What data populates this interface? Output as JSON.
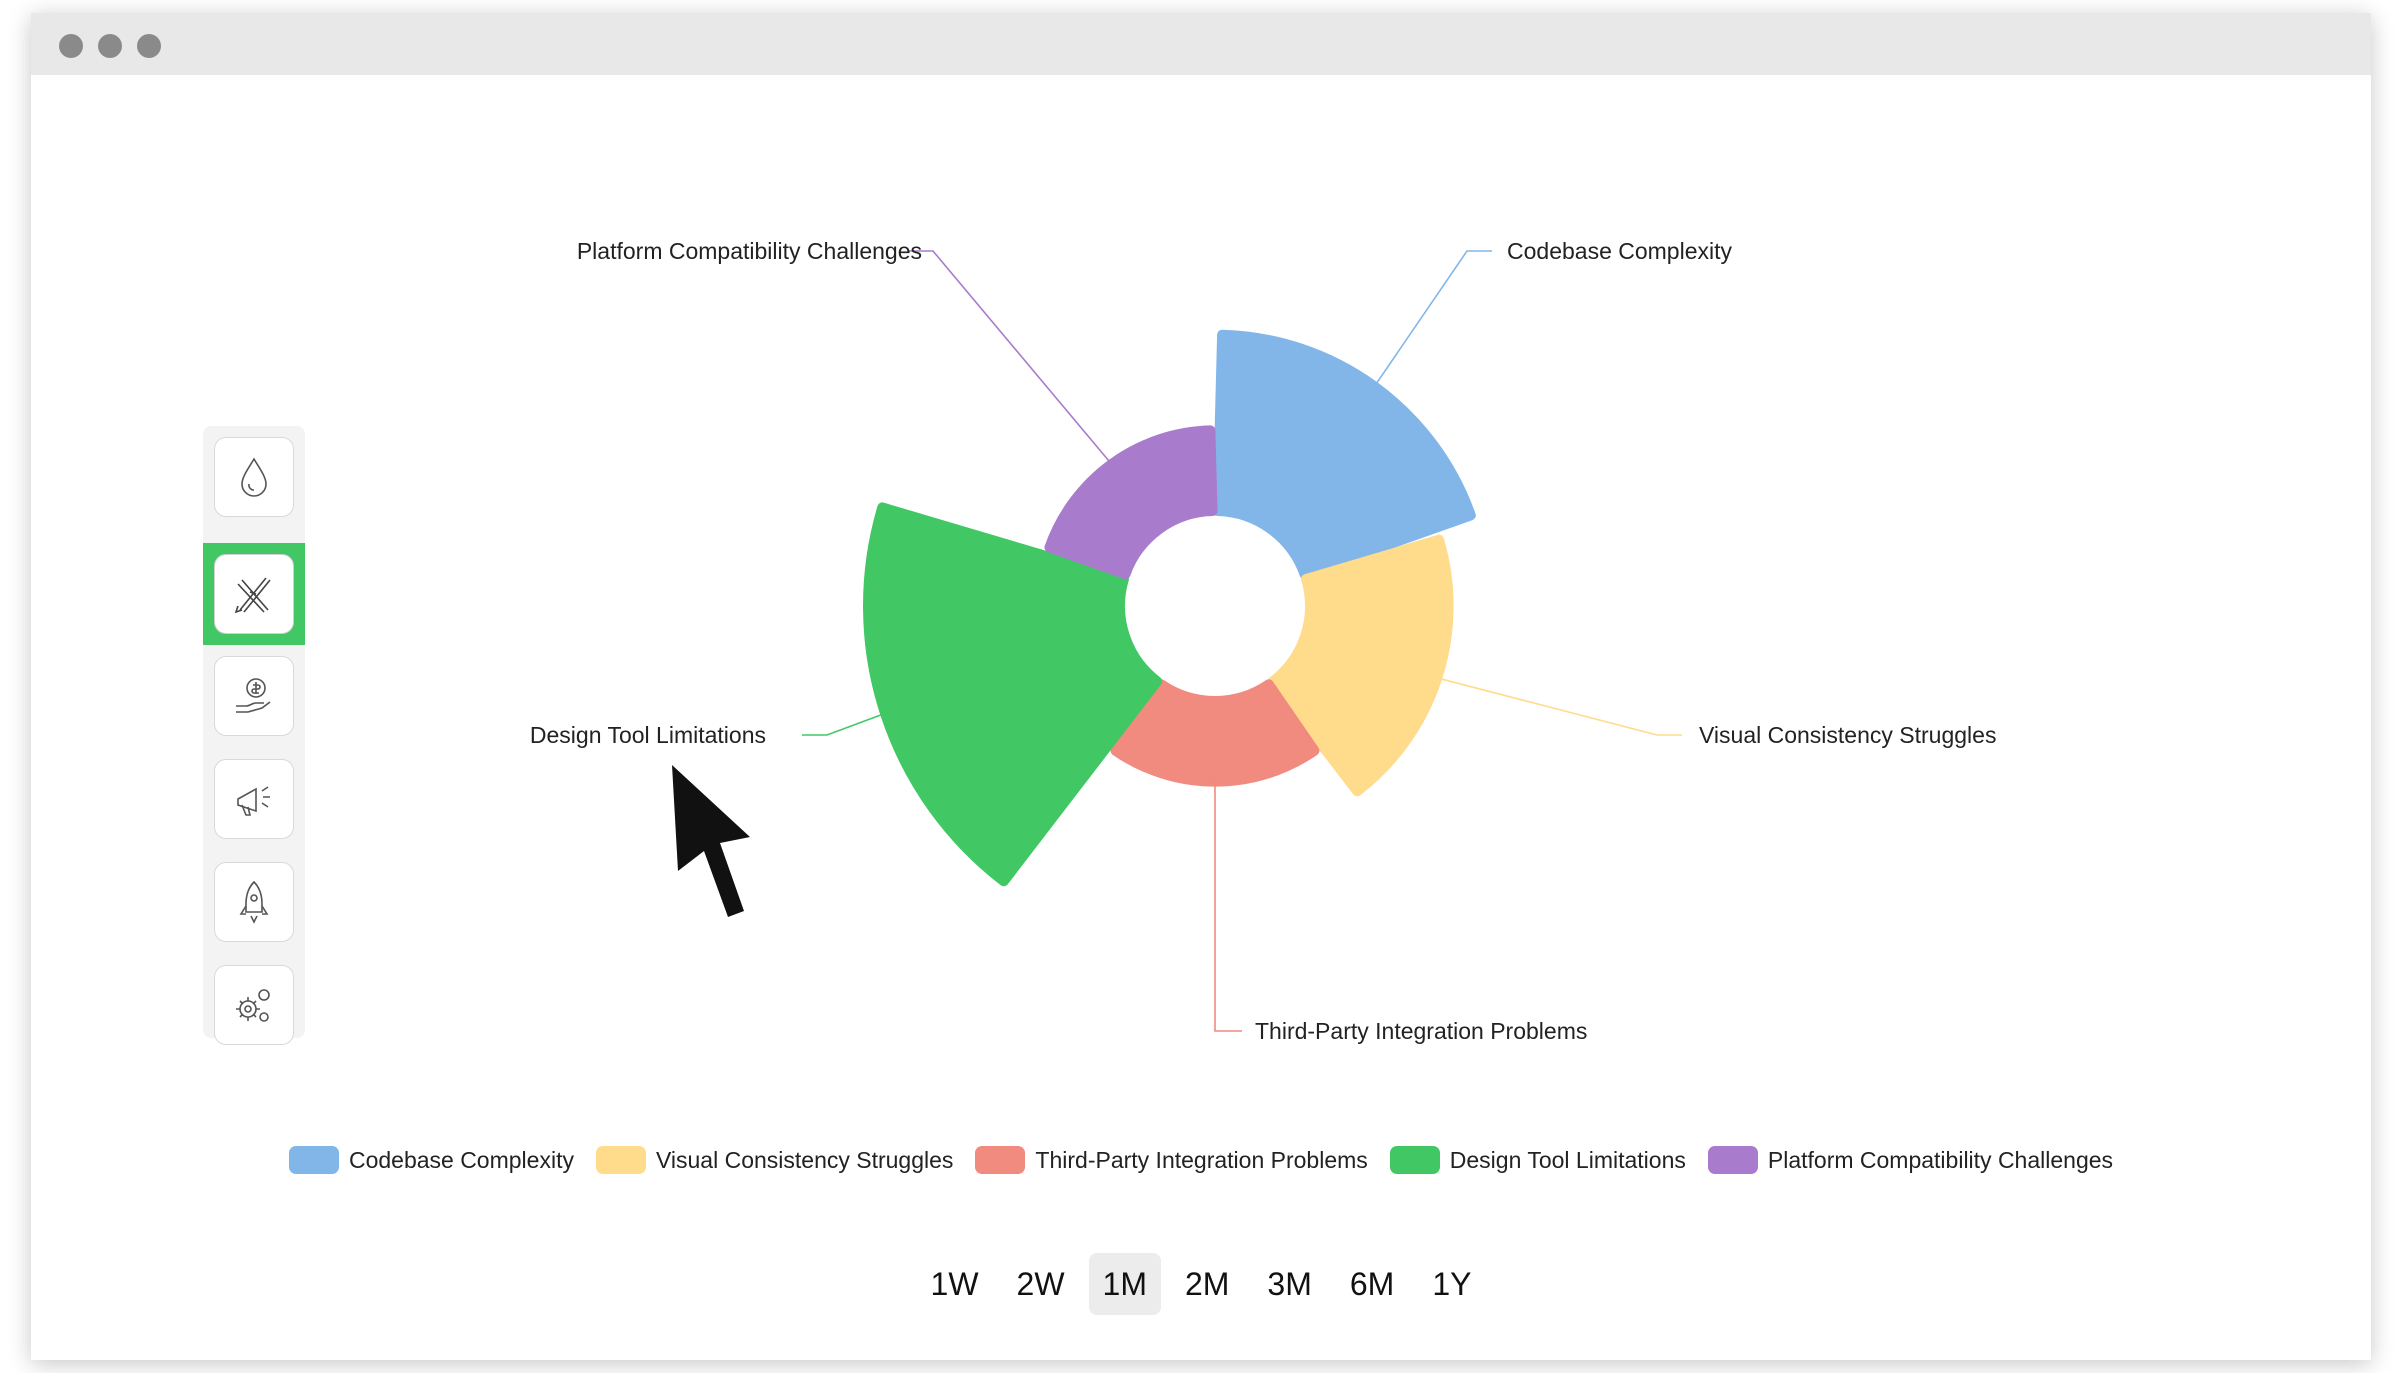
{
  "window": {
    "dots": [
      "#8a8a8a",
      "#8a8a8a",
      "#8a8a8a"
    ]
  },
  "sidebar": {
    "items": [
      {
        "icon": "droplet-icon",
        "active": false
      },
      {
        "icon": "design-tools-icon",
        "active": true
      },
      {
        "icon": "money-hand-icon",
        "active": false
      },
      {
        "icon": "megaphone-icon",
        "active": false
      },
      {
        "icon": "rocket-icon",
        "active": false
      },
      {
        "icon": "gears-icon",
        "active": false
      }
    ],
    "active_color": "#41c865"
  },
  "chart_data": {
    "type": "pie",
    "subtype": "nightingale-rose",
    "categories": [
      "Codebase Complexity",
      "Visual Consistency Struggles",
      "Third-Party Integration Problems",
      "Design Tool Limitations",
      "Platform Compatibility Challenges"
    ],
    "values": [
      70,
      55,
      32,
      100,
      32
    ],
    "colors": [
      "#82b6e8",
      "#ffdb8c",
      "#f18a7f",
      "#41c865",
      "#a97bcc"
    ],
    "legend_position": "bottom"
  },
  "legend": {
    "items": [
      {
        "label": "Codebase Complexity",
        "color": "#82b6e8"
      },
      {
        "label": "Visual Consistency Struggles",
        "color": "#ffdb8c"
      },
      {
        "label": "Third-Party Integration Problems",
        "color": "#f18a7f"
      },
      {
        "label": "Design Tool Limitations",
        "color": "#41c865"
      },
      {
        "label": "Platform Compatibility Challenges",
        "color": "#a97bcc"
      }
    ]
  },
  "ranges": {
    "items": [
      "1W",
      "2W",
      "1M",
      "2M",
      "3M",
      "6M",
      "1Y"
    ],
    "selected": "1M"
  }
}
